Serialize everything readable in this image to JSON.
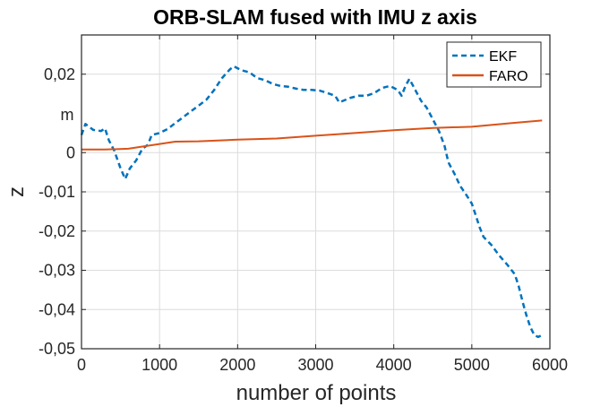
{
  "chart_data": {
    "type": "line",
    "title": "ORB-SLAM fused with IMU z axis",
    "xlabel": "number of points",
    "ylabel": "z",
    "y_unit_label": "m",
    "xlim": [
      0,
      6000
    ],
    "ylim": [
      -0.05,
      0.03
    ],
    "xticks": [
      0,
      1000,
      2000,
      3000,
      4000,
      5000,
      6000
    ],
    "xtick_labels": [
      "0",
      "1000",
      "2000",
      "3000",
      "4000",
      "5000",
      "6000"
    ],
    "yticks": [
      0.02,
      0,
      -0.01,
      -0.02,
      -0.03,
      -0.04,
      -0.05
    ],
    "ytick_labels": [
      "0,02",
      "0",
      "-0,01",
      "-0,02",
      "-0,03",
      "-0,04",
      "-0,05"
    ],
    "grid": true,
    "legend_position": "top-right",
    "series": [
      {
        "name": "EKF",
        "color": "#0072BD",
        "style": "dashed",
        "points": [
          [
            0,
            0.0045
          ],
          [
            50,
            0.0073
          ],
          [
            150,
            0.0058
          ],
          [
            250,
            0.0055
          ],
          [
            300,
            0.0062
          ],
          [
            350,
            0.0032
          ],
          [
            420,
            0.0005
          ],
          [
            500,
            -0.004
          ],
          [
            560,
            -0.0067
          ],
          [
            620,
            -0.004
          ],
          [
            700,
            -0.002
          ],
          [
            780,
            0.001
          ],
          [
            850,
            0.002
          ],
          [
            900,
            0.0045
          ],
          [
            1000,
            0.005
          ],
          [
            1100,
            0.006
          ],
          [
            1200,
            0.0075
          ],
          [
            1300,
            0.009
          ],
          [
            1400,
            0.0105
          ],
          [
            1500,
            0.012
          ],
          [
            1600,
            0.0135
          ],
          [
            1700,
            0.016
          ],
          [
            1800,
            0.019
          ],
          [
            1900,
            0.0212
          ],
          [
            1950,
            0.022
          ],
          [
            2050,
            0.021
          ],
          [
            2150,
            0.0205
          ],
          [
            2250,
            0.019
          ],
          [
            2350,
            0.0185
          ],
          [
            2450,
            0.0175
          ],
          [
            2550,
            0.017
          ],
          [
            2650,
            0.0168
          ],
          [
            2750,
            0.0163
          ],
          [
            2850,
            0.016
          ],
          [
            2950,
            0.016
          ],
          [
            3050,
            0.0158
          ],
          [
            3150,
            0.0152
          ],
          [
            3250,
            0.0145
          ],
          [
            3300,
            0.0128
          ],
          [
            3350,
            0.0132
          ],
          [
            3450,
            0.014
          ],
          [
            3550,
            0.0145
          ],
          [
            3650,
            0.0145
          ],
          [
            3750,
            0.0152
          ],
          [
            3850,
            0.0165
          ],
          [
            3950,
            0.017
          ],
          [
            4050,
            0.016
          ],
          [
            4100,
            0.0145
          ],
          [
            4150,
            0.017
          ],
          [
            4200,
            0.0188
          ],
          [
            4280,
            0.0158
          ],
          [
            4350,
            0.0132
          ],
          [
            4420,
            0.0115
          ],
          [
            4500,
            0.0085
          ],
          [
            4580,
            0.0055
          ],
          [
            4650,
            0.0018
          ],
          [
            4700,
            -0.0025
          ],
          [
            4780,
            -0.0055
          ],
          [
            4850,
            -0.0085
          ],
          [
            4920,
            -0.0105
          ],
          [
            5000,
            -0.013
          ],
          [
            5050,
            -0.016
          ],
          [
            5100,
            -0.019
          ],
          [
            5150,
            -0.0215
          ],
          [
            5250,
            -0.0235
          ],
          [
            5350,
            -0.0262
          ],
          [
            5450,
            -0.0285
          ],
          [
            5550,
            -0.031
          ],
          [
            5600,
            -0.034
          ],
          [
            5650,
            -0.038
          ],
          [
            5700,
            -0.0415
          ],
          [
            5750,
            -0.0445
          ],
          [
            5800,
            -0.0465
          ],
          [
            5850,
            -0.047
          ],
          [
            5900,
            -0.0465
          ]
        ]
      },
      {
        "name": "FARO",
        "color": "#D95319",
        "style": "solid",
        "points": [
          [
            0,
            0.0008
          ],
          [
            300,
            0.0008
          ],
          [
            600,
            0.001
          ],
          [
            800,
            0.0016
          ],
          [
            1000,
            0.0022
          ],
          [
            1200,
            0.0028
          ],
          [
            1500,
            0.0029
          ],
          [
            2000,
            0.0033
          ],
          [
            2500,
            0.0036
          ],
          [
            3000,
            0.0043
          ],
          [
            3500,
            0.005
          ],
          [
            4000,
            0.0057
          ],
          [
            4500,
            0.0063
          ],
          [
            5000,
            0.0066
          ],
          [
            5500,
            0.0075
          ],
          [
            5900,
            0.0082
          ]
        ]
      }
    ]
  }
}
